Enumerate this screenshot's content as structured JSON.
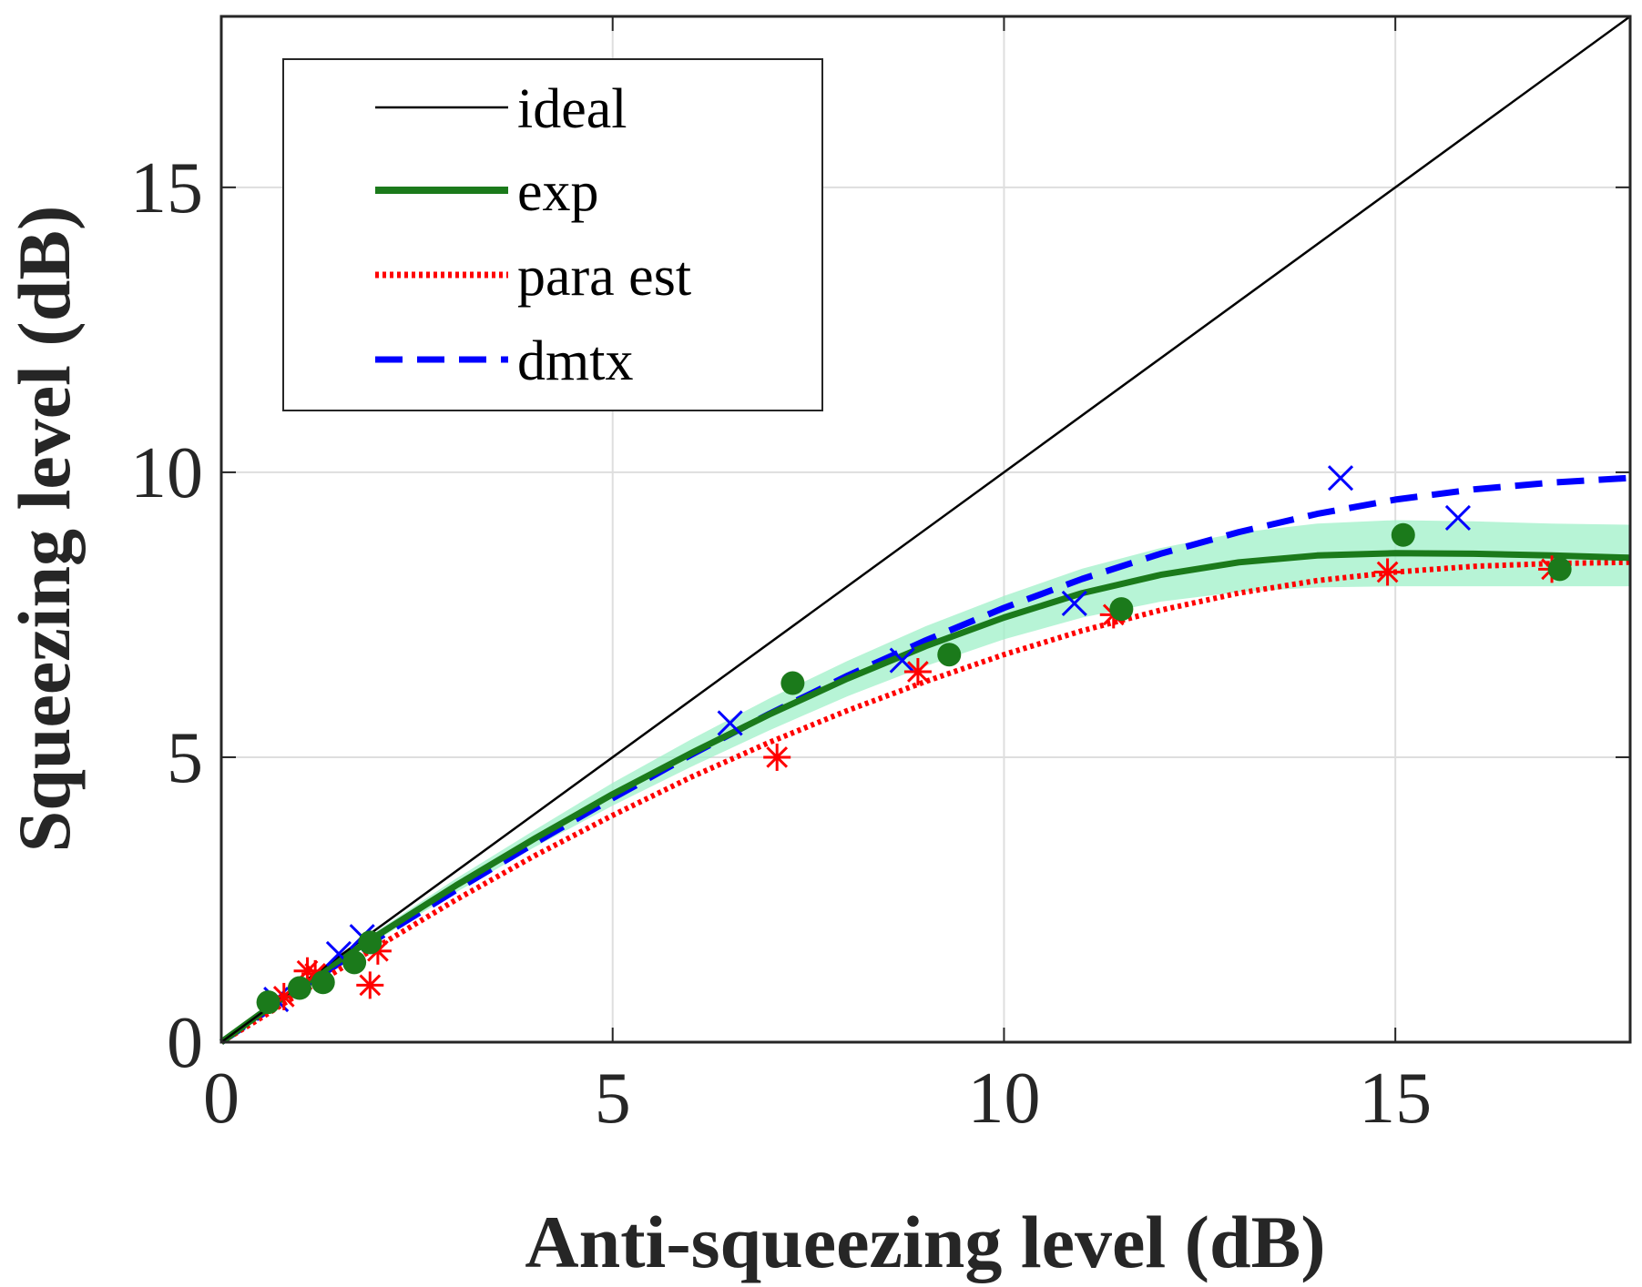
{
  "chart_data": {
    "type": "line",
    "title": "",
    "xlabel": "Anti-squeezing level (dB)",
    "ylabel": "Squeezing level (dB)",
    "xlim": [
      0,
      18
    ],
    "ylim": [
      0,
      18
    ],
    "xticks": [
      0,
      5,
      10,
      15
    ],
    "yticks": [
      0,
      5,
      10,
      15
    ],
    "x_tick_labels": [
      "0",
      "5",
      "10",
      "15"
    ],
    "y_tick_labels": [
      "0",
      "5",
      "10",
      "15"
    ],
    "grid": true,
    "legend_position": "top-left",
    "legend": [
      "ideal",
      "exp",
      "para est",
      "dmtx"
    ],
    "series": [
      {
        "name": "ideal",
        "style": "solid-thin",
        "color": "#000000",
        "x": [
          0,
          18
        ],
        "y": [
          0,
          18
        ]
      },
      {
        "name": "exp",
        "style": "solid-thick",
        "color": "#1b7a1b",
        "x": [
          0,
          0.5,
          1,
          1.5,
          2,
          3,
          4,
          5,
          6,
          7,
          8,
          9,
          10,
          11,
          12,
          13,
          14,
          15,
          16,
          17,
          18
        ],
        "y": [
          0,
          0.5,
          0.97,
          1.43,
          1.88,
          2.75,
          3.57,
          4.35,
          5.07,
          5.75,
          6.38,
          6.95,
          7.45,
          7.88,
          8.2,
          8.42,
          8.54,
          8.58,
          8.57,
          8.54,
          8.5
        ],
        "band_lower": [
          0,
          0.48,
          0.93,
          1.37,
          1.8,
          2.63,
          3.42,
          4.15,
          4.83,
          5.47,
          6.07,
          6.6,
          7.07,
          7.45,
          7.73,
          7.9,
          7.98,
          8.0,
          8.0,
          8.0,
          8.0
        ],
        "band_upper": [
          0,
          0.52,
          1.01,
          1.49,
          1.96,
          2.87,
          3.72,
          4.55,
          5.31,
          6.03,
          6.69,
          7.3,
          7.83,
          8.31,
          8.67,
          8.94,
          9.1,
          9.16,
          9.14,
          9.1,
          9.08
        ],
        "points_x": [
          0.6,
          1.0,
          1.3,
          1.7,
          1.9,
          7.3,
          9.3,
          11.5,
          15.1,
          17.1
        ],
        "points_y": [
          0.7,
          0.95,
          1.05,
          1.4,
          1.75,
          6.3,
          6.8,
          7.6,
          8.9,
          8.3
        ]
      },
      {
        "name": "para est",
        "style": "dotted",
        "color": "#ff0000",
        "x": [
          0,
          0.5,
          1,
          1.5,
          2,
          3,
          4,
          5,
          6,
          7,
          8,
          9,
          10,
          11,
          12,
          13,
          14,
          15,
          16,
          17,
          18
        ],
        "y": [
          0,
          0.42,
          0.85,
          1.27,
          1.68,
          2.5,
          3.27,
          3.98,
          4.65,
          5.26,
          5.82,
          6.33,
          6.8,
          7.22,
          7.58,
          7.88,
          8.1,
          8.25,
          8.35,
          8.4,
          8.42
        ],
        "points_x": [
          0.8,
          1.1,
          1.2,
          1.9,
          2.0,
          7.1,
          8.9,
          11.4,
          14.9,
          17.0
        ],
        "points_y": [
          0.8,
          1.25,
          1.2,
          1.0,
          1.6,
          5.0,
          6.5,
          7.5,
          8.25,
          8.3
        ]
      },
      {
        "name": "dmtx",
        "style": "dashed",
        "color": "#0000ff",
        "x": [
          0,
          0.5,
          1,
          1.5,
          2,
          3,
          4,
          5,
          6,
          7,
          8,
          9,
          10,
          11,
          12,
          13,
          14,
          15,
          16,
          17,
          18
        ],
        "y": [
          0,
          0.47,
          0.93,
          1.38,
          1.82,
          2.67,
          3.49,
          4.28,
          5.04,
          5.76,
          6.43,
          7.05,
          7.62,
          8.13,
          8.57,
          8.95,
          9.27,
          9.52,
          9.7,
          9.82,
          9.9
        ],
        "points_x": [
          0.7,
          1.5,
          1.8,
          6.5,
          8.7,
          10.9,
          14.3,
          15.8
        ],
        "points_y": [
          0.75,
          1.55,
          1.85,
          5.6,
          6.7,
          7.7,
          9.9,
          9.2
        ]
      }
    ]
  }
}
